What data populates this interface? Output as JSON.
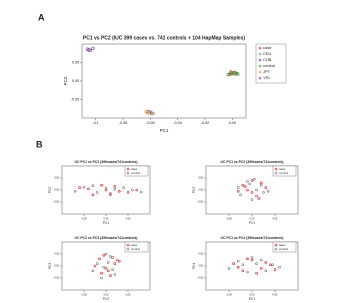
{
  "panels": [
    "A",
    "B"
  ],
  "chart_data": [
    {
      "type": "scatter",
      "title": "PC1 vs PC2 (IUC 399 cases vs. 741 controls + 104 HapMap Samples)",
      "x_label": "PC1",
      "y_label": "PC2",
      "legend": "right",
      "xlim": [
        -0.11,
        0.01
      ],
      "xticks": [
        -0.1,
        -0.08,
        -0.06,
        -0.04,
        -0.02,
        {
          "value": 0,
          "label": "0.00"
        }
      ],
      "ylim": [
        -0.1,
        0.1
      ],
      "yticks": [
        -0.05,
        {
          "value": 0,
          "label": "0.00"
        },
        0.05
      ],
      "series": [
        {
          "name": "case",
          "color": "#e41a1c",
          "x": [
            -0.002,
            0.001,
            0.003,
            -0.001
          ],
          "y": [
            0.018,
            0.022,
            0.02,
            0.024
          ]
        },
        {
          "name": "CEU",
          "color": "#888888",
          "x": [
            0,
            0.002
          ],
          "y": [
            0.021,
            0.019
          ]
        },
        {
          "name": "CHB",
          "color": "#3b4cc0",
          "x": [
            -0.061,
            -0.059
          ],
          "y": [
            -0.083,
            -0.087
          ]
        },
        {
          "name": "control",
          "color": "#2ca02c",
          "x": [
            -0.003,
            0,
            0.002,
            0.004,
            -0.001
          ],
          "y": [
            0.017,
            0.02,
            0.023,
            0.019,
            0.021
          ]
        },
        {
          "name": "JPT",
          "color": "#d98c1a",
          "x": [
            -0.062,
            -0.06,
            -0.058,
            -0.063
          ],
          "y": [
            -0.086,
            -0.084,
            -0.088,
            -0.082
          ]
        },
        {
          "name": "YRI",
          "color": "#7b3fa0",
          "x": [
            -0.106,
            -0.104,
            -0.102,
            -0.105
          ],
          "y": [
            0.086,
            0.083,
            0.088,
            0.084
          ]
        }
      ]
    },
    {
      "type": "scatter",
      "title": "UC PC1 vs PC2 (399cases/741controls)",
      "x_label": "PC1",
      "y_label": "PC2",
      "legend": "top-right",
      "xlim": [
        -0.1,
        0.1
      ],
      "xticks": [
        -0.05,
        {
          "value": 0,
          "label": "0.00"
        },
        0.05
      ],
      "ylim": [
        -0.1,
        0.1
      ],
      "yticks": [
        -0.05,
        {
          "value": 0,
          "label": "0.00"
        },
        0.05
      ],
      "series": [
        {
          "name": "case",
          "color": "#e41a1c",
          "x": [
            -0.06,
            -0.03,
            0,
            0.02,
            0.05,
            -0.01,
            0.03,
            -0.04,
            0.07,
            0.01
          ],
          "y": [
            0.01,
            -0.02,
            0,
            0.015,
            -0.01,
            0.02,
            -0.005,
            0.005,
            0,
            -0.015
          ]
        },
        {
          "name": "control",
          "color": "#777777",
          "x": [
            -0.07,
            -0.05,
            -0.02,
            0,
            0.01,
            0.04,
            0.06,
            -0.03,
            0.02,
            0.08
          ],
          "y": [
            -0.005,
            0.012,
            -0.01,
            0.008,
            -0.02,
            0.01,
            0,
            0.018,
            0.004,
            -0.008
          ]
        }
      ]
    },
    {
      "type": "scatter",
      "title": "UC PC1 vs PC3 (399cases/741controls)",
      "x_label": "PC1",
      "y_label": "PC3",
      "legend": "top-right",
      "xlim": [
        -0.1,
        0.1
      ],
      "xticks": [
        -0.05,
        {
          "value": 0,
          "label": "0.00"
        },
        0.05
      ],
      "ylim": [
        -0.1,
        0.1
      ],
      "yticks": [
        -0.05,
        {
          "value": 0,
          "label": "0.00"
        },
        0.05
      ],
      "series": [
        {
          "name": "case",
          "color": "#e41a1c",
          "x": [
            -0.02,
            0,
            0.02,
            -0.01,
            0.01,
            0.03,
            -0.03,
            0,
            0.015,
            -0.015
          ],
          "y": [
            0.02,
            -0.01,
            0.03,
            0,
            -0.025,
            0.01,
            -0.005,
            0.04,
            -0.035,
            0.015
          ]
        },
        {
          "name": "control",
          "color": "#777777",
          "x": [
            -0.025,
            -0.005,
            0.01,
            0.025,
            0,
            -0.01,
            0.02,
            0.035,
            -0.03,
            0.005
          ],
          "y": [
            -0.02,
            0.025,
            0,
            -0.01,
            -0.04,
            0.035,
            0.02,
            -0.005,
            0.01,
            0.045
          ]
        }
      ]
    },
    {
      "type": "scatter",
      "title": "UC PC2 vs PC3 (399cases/741controls)",
      "x_label": "PC2",
      "y_label": "PC3",
      "legend": "top-right",
      "xlim": [
        -0.1,
        0.1
      ],
      "xticks": [
        -0.05,
        {
          "value": 0,
          "label": "0.00"
        },
        0.05
      ],
      "ylim": [
        -0.1,
        0.1
      ],
      "yticks": [
        -0.05,
        {
          "value": 0,
          "label": "0.00"
        },
        0.05
      ],
      "series": [
        {
          "name": "case",
          "color": "#e41a1c",
          "x": [
            -0.015,
            0.005,
            0.02,
            -0.005,
            0.01,
            -0.025,
            0.03,
            0,
            -0.01,
            0.015
          ],
          "y": [
            0.03,
            -0.02,
            0.01,
            0.045,
            -0.04,
            0,
            0.02,
            -0.01,
            -0.03,
            0.035
          ]
        },
        {
          "name": "control",
          "color": "#777777",
          "x": [
            -0.02,
            0,
            0.015,
            0.025,
            -0.01,
            0.005,
            -0.03,
            0.02,
            0.01,
            -0.005
          ],
          "y": [
            0.01,
            0.05,
            -0.015,
            0.025,
            -0.05,
            0.015,
            -0.02,
            -0.035,
            0.04,
            -0.005
          ]
        }
      ]
    },
    {
      "type": "scatter",
      "title": "UC PC1 vs PC4 (399cases/741controls)",
      "x_label": "PC1",
      "y_label": "PC4",
      "legend": "top-right",
      "xlim": [
        -0.1,
        0.1
      ],
      "xticks": [
        -0.05,
        {
          "value": 0,
          "label": "0.00"
        },
        0.05
      ],
      "ylim": [
        -0.1,
        0.1
      ],
      "yticks": [
        -0.05,
        {
          "value": 0,
          "label": "0.00"
        },
        0.05
      ],
      "series": [
        {
          "name": "case",
          "color": "#e41a1c",
          "x": [
            -0.04,
            -0.02,
            0,
            0.02,
            0.04,
            -0.01,
            0.01,
            0.03,
            -0.03,
            0.05
          ],
          "y": [
            0.01,
            -0.02,
            0.025,
            -0.01,
            0.005,
            0.03,
            -0.03,
            0.015,
            -0.005,
            -0.015
          ]
        },
        {
          "name": "control",
          "color": "#777777",
          "x": [
            -0.05,
            -0.03,
            -0.01,
            0.01,
            0.03,
            0.045,
            0,
            -0.02,
            0.02,
            0.06
          ],
          "y": [
            -0.01,
            0.02,
            -0.025,
            0.01,
            -0.02,
            0.005,
            0.035,
            0.005,
            0.025,
            -0.005
          ]
        }
      ]
    }
  ]
}
